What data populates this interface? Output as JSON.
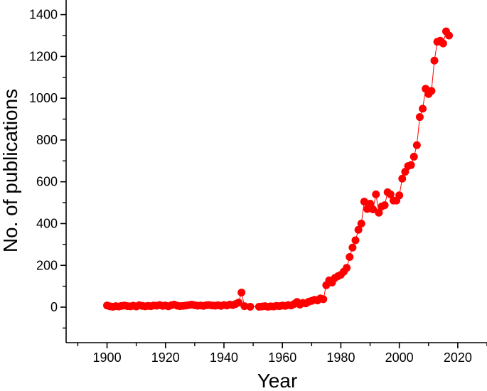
{
  "chart_data": {
    "type": "scatter",
    "title": "",
    "xlabel": "Year",
    "ylabel": "No. of publications",
    "xlim": [
      1886,
      2030
    ],
    "ylim": [
      -170,
      1470
    ],
    "xticks": [
      1900,
      1920,
      1940,
      1960,
      1980,
      2000,
      2020
    ],
    "yticks": [
      0,
      200,
      400,
      600,
      800,
      1000,
      1200,
      1400
    ],
    "grid": false,
    "legend": "none",
    "marker_color": "#ff0000",
    "line_color": "#ff0000",
    "series": [
      {
        "name": "",
        "points": [
          [
            1900,
            8
          ],
          [
            1901,
            4
          ],
          [
            1902,
            2
          ],
          [
            1903,
            5
          ],
          [
            1904,
            3
          ],
          [
            1905,
            6
          ],
          [
            1906,
            8
          ],
          [
            1907,
            5
          ],
          [
            1908,
            4
          ],
          [
            1909,
            7
          ],
          [
            1910,
            3
          ],
          [
            1911,
            9
          ],
          [
            1912,
            6
          ],
          [
            1913,
            4
          ],
          [
            1914,
            6
          ],
          [
            1915,
            5
          ],
          [
            1916,
            8
          ],
          [
            1917,
            7
          ],
          [
            1918,
            10
          ],
          [
            1919,
            6
          ],
          [
            1920,
            8
          ],
          [
            1921,
            4
          ],
          [
            1922,
            9
          ],
          [
            1923,
            12
          ],
          [
            1924,
            7
          ],
          [
            1925,
            5
          ],
          [
            1926,
            6
          ],
          [
            1927,
            8
          ],
          [
            1928,
            10
          ],
          [
            1929,
            12
          ],
          [
            1930,
            9
          ],
          [
            1931,
            7
          ],
          [
            1932,
            8
          ],
          [
            1933,
            6
          ],
          [
            1934,
            9
          ],
          [
            1935,
            10
          ],
          [
            1936,
            8
          ],
          [
            1937,
            7
          ],
          [
            1938,
            9
          ],
          [
            1939,
            6
          ],
          [
            1940,
            10
          ],
          [
            1941,
            8
          ],
          [
            1942,
            12
          ],
          [
            1943,
            10
          ],
          [
            1944,
            15
          ],
          [
            1945,
            22
          ],
          [
            1946,
            70
          ],
          [
            1947,
            5
          ],
          [
            1949,
            2
          ],
          [
            1952,
            2
          ],
          [
            1953,
            3
          ],
          [
            1954,
            5
          ],
          [
            1955,
            2
          ],
          [
            1956,
            4
          ],
          [
            1957,
            3
          ],
          [
            1958,
            6
          ],
          [
            1959,
            5
          ],
          [
            1960,
            8
          ],
          [
            1961,
            6
          ],
          [
            1962,
            10
          ],
          [
            1963,
            8
          ],
          [
            1964,
            15
          ],
          [
            1965,
            25
          ],
          [
            1966,
            12
          ],
          [
            1967,
            20
          ],
          [
            1968,
            18
          ],
          [
            1969,
            26
          ],
          [
            1970,
            30
          ],
          [
            1971,
            35
          ],
          [
            1972,
            32
          ],
          [
            1973,
            42
          ],
          [
            1974,
            38
          ],
          [
            1975,
            105
          ],
          [
            1976,
            128
          ],
          [
            1977,
            118
          ],
          [
            1978,
            140
          ],
          [
            1979,
            148
          ],
          [
            1980,
            155
          ],
          [
            1981,
            170
          ],
          [
            1982,
            188
          ],
          [
            1983,
            240
          ],
          [
            1984,
            285
          ],
          [
            1985,
            320
          ],
          [
            1986,
            370
          ],
          [
            1987,
            400
          ],
          [
            1988,
            505
          ],
          [
            1989,
            470
          ],
          [
            1990,
            495
          ],
          [
            1991,
            468
          ],
          [
            1992,
            540
          ],
          [
            1993,
            452
          ],
          [
            1994,
            482
          ],
          [
            1995,
            488
          ],
          [
            1996,
            550
          ],
          [
            1997,
            540
          ],
          [
            1998,
            510
          ],
          [
            1999,
            510
          ],
          [
            2000,
            535
          ],
          [
            2001,
            615
          ],
          [
            2002,
            648
          ],
          [
            2003,
            675
          ],
          [
            2004,
            680
          ],
          [
            2005,
            720
          ],
          [
            2006,
            775
          ],
          [
            2007,
            910
          ],
          [
            2008,
            950
          ],
          [
            2009,
            1045
          ],
          [
            2010,
            1020
          ],
          [
            2011,
            1035
          ],
          [
            2012,
            1180
          ],
          [
            2013,
            1270
          ],
          [
            2014,
            1275
          ],
          [
            2015,
            1262
          ],
          [
            2016,
            1320
          ],
          [
            2017,
            1300
          ]
        ]
      }
    ]
  }
}
